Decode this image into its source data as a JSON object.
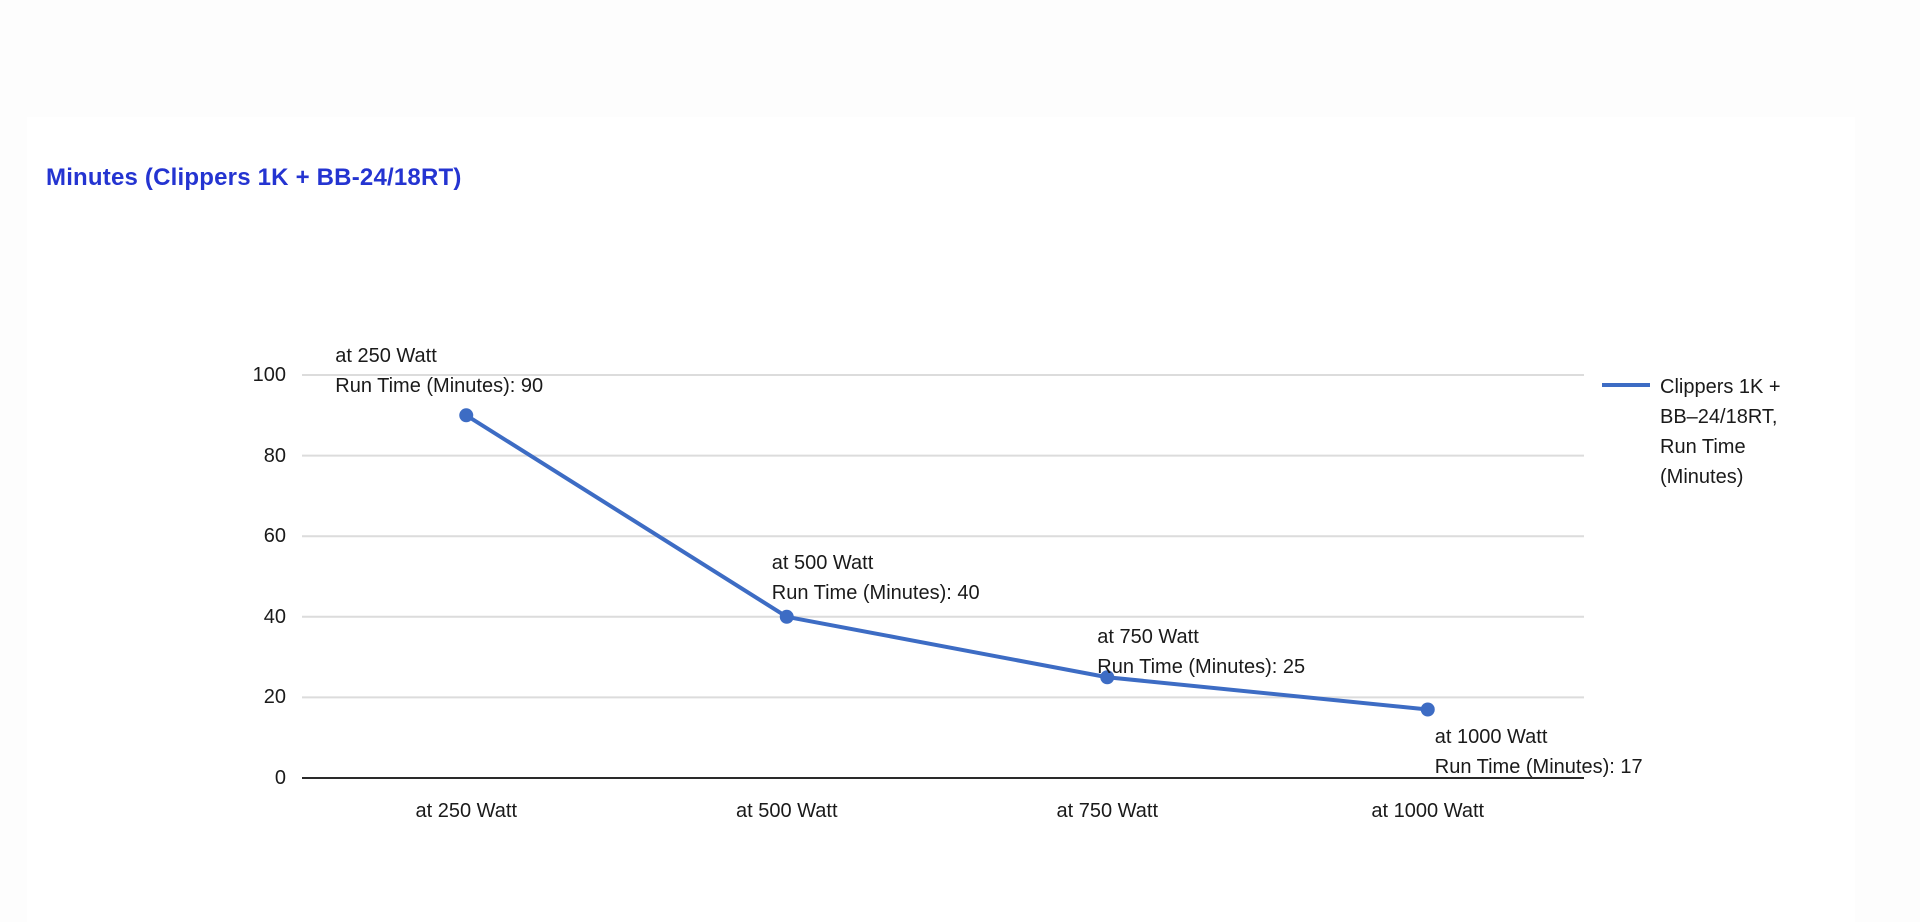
{
  "title": "Minutes (Clippers 1K + BB-24/18RT)",
  "chart_data": {
    "type": "line",
    "title": "Minutes (Clippers 1K + BB-24/18RT)",
    "categories": [
      "at 250 Watt",
      "at 500 Watt",
      "at 750 Watt",
      "at 1000 Watt"
    ],
    "series": [
      {
        "name": "Clippers 1K + BB–24/18RT, Run Time (Minutes)",
        "values": [
          90,
          40,
          25,
          17
        ]
      }
    ],
    "ylim": [
      0,
      100
    ],
    "yticks": [
      0,
      20,
      40,
      60,
      80,
      100
    ],
    "xlabel": "",
    "ylabel": "",
    "grid": true,
    "legend_position": "right",
    "legend_lines": [
      "Clippers 1K +",
      "BB–24/18RT,",
      "Run Time",
      "(Minutes)"
    ],
    "annotations": [
      {
        "lines": [
          "at 250 Watt",
          "Run Time (Minutes): 90"
        ]
      },
      {
        "lines": [
          "at 500 Watt",
          "Run Time (Minutes): 40"
        ]
      },
      {
        "lines": [
          "at 750 Watt",
          "Run Time (Minutes): 25"
        ]
      },
      {
        "lines": [
          "at 1000 Watt",
          "Run Time (Minutes): 17"
        ]
      }
    ],
    "colors": {
      "series": "#3d6cc4",
      "title": "#2434d1",
      "grid": "#dcdcdc",
      "axis": "#2a2a2a",
      "text": "#1a1a1a",
      "page_bg": "#fdfdfd",
      "card_bg": "#ffffff"
    }
  }
}
